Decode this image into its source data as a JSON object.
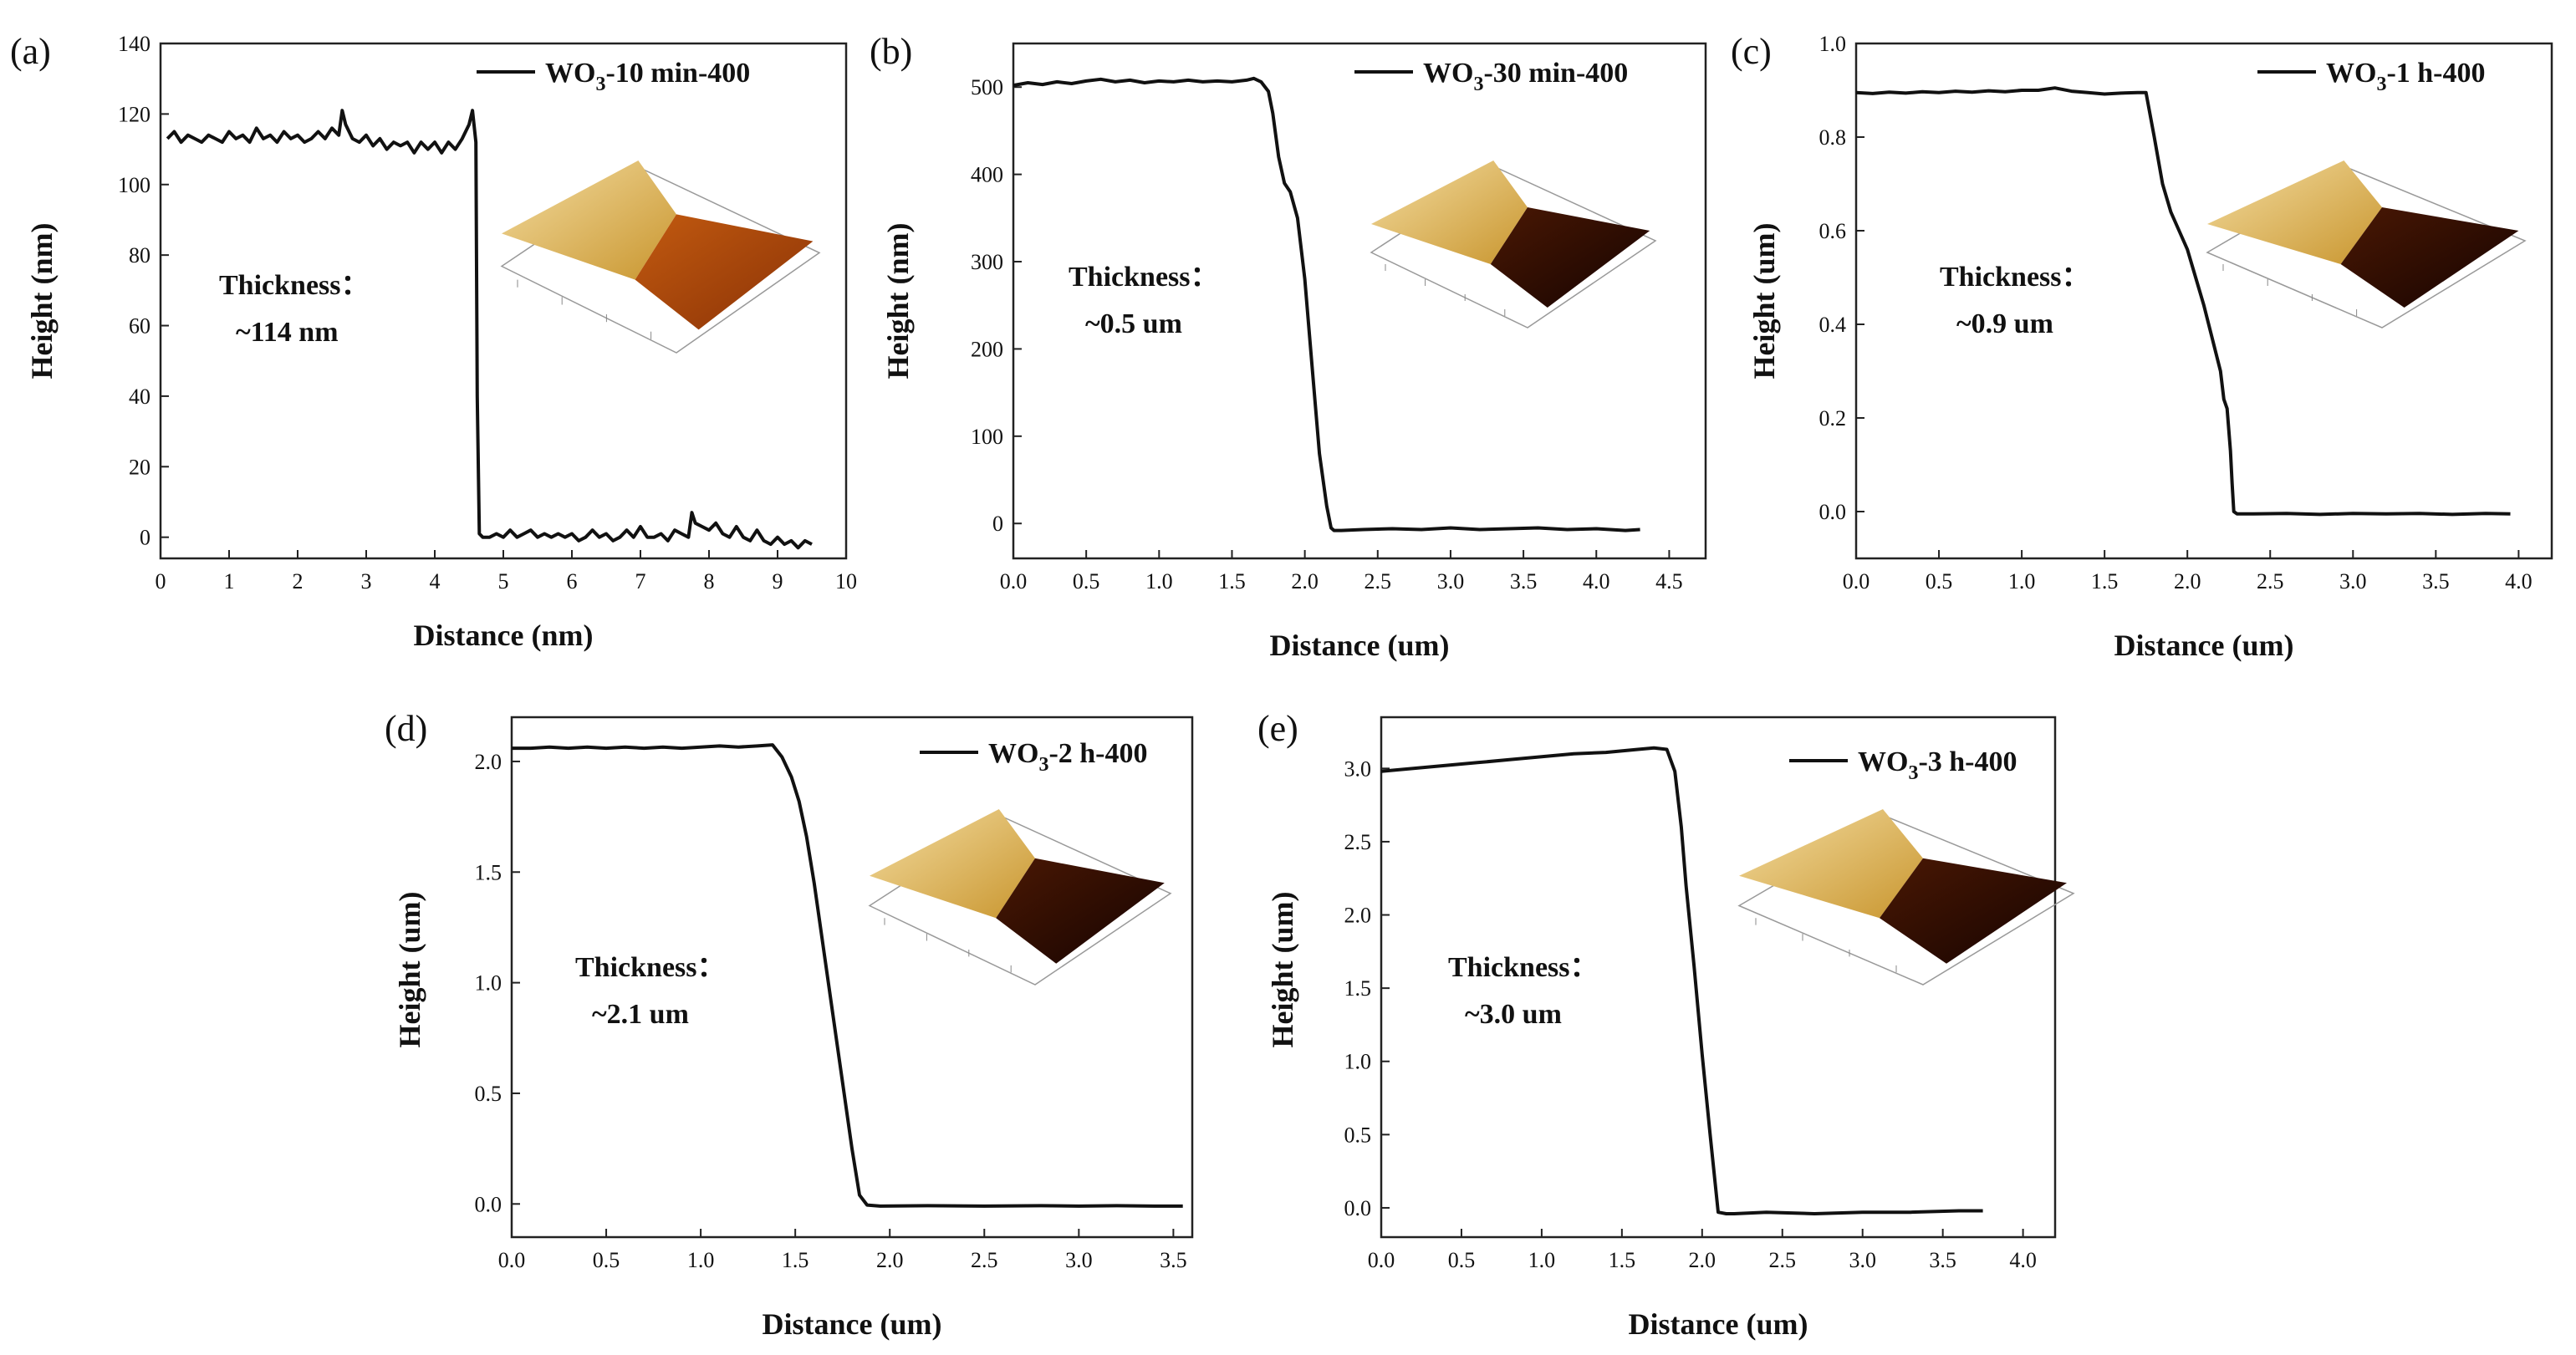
{
  "chart_data": [
    {
      "type": "line",
      "panel_label": "(a)",
      "legend": {
        "prefix": "WO",
        "sub": "3",
        "suffix": "-10 min-400"
      },
      "annotation": [
        "Thickness：",
        "~114 nm"
      ],
      "xlabel": "Distance (nm)",
      "ylabel": "Height (nm)",
      "xlim": [
        0,
        10
      ],
      "ylim": [
        -6,
        140
      ],
      "xticks": [
        0,
        1,
        2,
        3,
        4,
        5,
        6,
        7,
        8,
        9,
        10
      ],
      "yticks": [
        0,
        20,
        40,
        60,
        80,
        100,
        120,
        140
      ],
      "x": [
        0.1,
        0.2,
        0.3,
        0.4,
        0.5,
        0.6,
        0.7,
        0.8,
        0.9,
        1.0,
        1.1,
        1.2,
        1.3,
        1.4,
        1.5,
        1.6,
        1.7,
        1.8,
        1.9,
        2.0,
        2.1,
        2.2,
        2.3,
        2.4,
        2.5,
        2.6,
        2.65,
        2.7,
        2.8,
        2.9,
        3.0,
        3.1,
        3.2,
        3.3,
        3.4,
        3.5,
        3.6,
        3.7,
        3.8,
        3.9,
        4.0,
        4.1,
        4.2,
        4.3,
        4.4,
        4.5,
        4.55,
        4.6,
        4.62,
        4.65,
        4.7,
        4.8,
        4.9,
        5.0,
        5.1,
        5.2,
        5.3,
        5.4,
        5.5,
        5.6,
        5.7,
        5.8,
        5.9,
        6.0,
        6.1,
        6.2,
        6.3,
        6.4,
        6.5,
        6.6,
        6.7,
        6.8,
        6.9,
        7.0,
        7.1,
        7.2,
        7.3,
        7.4,
        7.5,
        7.6,
        7.7,
        7.75,
        7.8,
        7.9,
        8.0,
        8.1,
        8.2,
        8.3,
        8.4,
        8.5,
        8.6,
        8.7,
        8.8,
        8.9,
        9.0,
        9.1,
        9.2,
        9.3,
        9.4,
        9.5
      ],
      "y": [
        113,
        115,
        112,
        114,
        113,
        112,
        114,
        113,
        112,
        115,
        113,
        114,
        112,
        116,
        113,
        114,
        112,
        115,
        113,
        114,
        112,
        113,
        115,
        113,
        116,
        114,
        121,
        117,
        113,
        112,
        114,
        111,
        113,
        110,
        112,
        111,
        112,
        109,
        112,
        110,
        112,
        109,
        112,
        110,
        113,
        117,
        121,
        112,
        40,
        1,
        0,
        0,
        1,
        0,
        2,
        0,
        1,
        2,
        0,
        1,
        0,
        1,
        0,
        1,
        -1,
        0,
        2,
        0,
        1,
        -1,
        0,
        2,
        0,
        3,
        0,
        0,
        1,
        -1,
        2,
        1,
        0,
        7,
        4,
        3,
        2,
        4,
        1,
        0,
        3,
        0,
        -1,
        2,
        -1,
        -2,
        0,
        -2,
        -1,
        -3,
        -1,
        -2
      ]
    },
    {
      "type": "line",
      "panel_label": "(b)",
      "legend": {
        "prefix": "WO",
        "sub": "3",
        "suffix": "-30 min-400"
      },
      "annotation": [
        "Thickness：",
        "~0.5 um"
      ],
      "xlabel": "Distance (um)",
      "ylabel": "Height (nm)",
      "xlim": [
        0,
        4.75
      ],
      "ylim": [
        -40,
        550
      ],
      "xticks": [
        0.0,
        0.5,
        1.0,
        1.5,
        2.0,
        2.5,
        3.0,
        3.5,
        4.0,
        4.5
      ],
      "yticks": [
        0,
        100,
        200,
        300,
        400,
        500
      ],
      "x": [
        0.0,
        0.1,
        0.2,
        0.3,
        0.4,
        0.5,
        0.6,
        0.7,
        0.8,
        0.9,
        1.0,
        1.1,
        1.2,
        1.3,
        1.4,
        1.5,
        1.6,
        1.65,
        1.7,
        1.75,
        1.78,
        1.82,
        1.86,
        1.9,
        1.95,
        2.0,
        2.05,
        2.1,
        2.15,
        2.18,
        2.2,
        2.25,
        2.4,
        2.6,
        2.8,
        3.0,
        3.2,
        3.4,
        3.6,
        3.8,
        4.0,
        4.2,
        4.3
      ],
      "y": [
        502,
        505,
        503,
        506,
        504,
        507,
        509,
        506,
        508,
        505,
        507,
        506,
        508,
        506,
        507,
        506,
        508,
        510,
        506,
        495,
        470,
        420,
        390,
        380,
        350,
        280,
        180,
        80,
        20,
        -5,
        -8,
        -8,
        -7,
        -6,
        -7,
        -5,
        -7,
        -6,
        -5,
        -7,
        -6,
        -8,
        -7
      ]
    },
    {
      "type": "line",
      "panel_label": "(c)",
      "legend": {
        "prefix": "WO",
        "sub": "3",
        "suffix": "-1 h-400"
      },
      "annotation": [
        "Thickness：",
        "~0.9 um"
      ],
      "xlabel": "Distance (um)",
      "ylabel": "Height (um)",
      "xlim": [
        0,
        4.2
      ],
      "ylim": [
        -0.1,
        1.0
      ],
      "xticks": [
        0.0,
        0.5,
        1.0,
        1.5,
        2.0,
        2.5,
        3.0,
        3.5,
        4.0
      ],
      "yticks": [
        0.0,
        0.2,
        0.4,
        0.6,
        0.8,
        1.0
      ],
      "x": [
        0.0,
        0.1,
        0.2,
        0.3,
        0.4,
        0.5,
        0.6,
        0.7,
        0.8,
        0.9,
        1.0,
        1.1,
        1.2,
        1.3,
        1.4,
        1.5,
        1.6,
        1.7,
        1.75,
        1.8,
        1.85,
        1.9,
        1.95,
        2.0,
        2.05,
        2.1,
        2.15,
        2.2,
        2.22,
        2.24,
        2.26,
        2.27,
        2.28,
        2.3,
        2.4,
        2.6,
        2.8,
        3.0,
        3.2,
        3.4,
        3.6,
        3.8,
        3.95
      ],
      "y": [
        0.895,
        0.893,
        0.896,
        0.894,
        0.897,
        0.895,
        0.898,
        0.896,
        0.899,
        0.897,
        0.9,
        0.9,
        0.905,
        0.898,
        0.895,
        0.892,
        0.894,
        0.895,
        0.895,
        0.8,
        0.7,
        0.64,
        0.6,
        0.56,
        0.5,
        0.44,
        0.37,
        0.3,
        0.24,
        0.22,
        0.13,
        0.06,
        0.0,
        -0.005,
        -0.005,
        -0.004,
        -0.006,
        -0.004,
        -0.005,
        -0.004,
        -0.006,
        -0.004,
        -0.005
      ]
    },
    {
      "type": "line",
      "panel_label": "(d)",
      "legend": {
        "prefix": "WO",
        "sub": "3",
        "suffix": "-2 h-400"
      },
      "annotation": [
        "Thickness：",
        "~2.1 um"
      ],
      "xlabel": "Distance (um)",
      "ylabel": "Height (um)",
      "xlim": [
        0,
        3.6
      ],
      "ylim": [
        -0.15,
        2.2
      ],
      "xticks": [
        0.0,
        0.5,
        1.0,
        1.5,
        2.0,
        2.5,
        3.0,
        3.5
      ],
      "yticks": [
        0.0,
        0.5,
        1.0,
        1.5,
        2.0
      ],
      "x": [
        0.0,
        0.1,
        0.2,
        0.3,
        0.4,
        0.5,
        0.6,
        0.7,
        0.8,
        0.9,
        1.0,
        1.1,
        1.2,
        1.3,
        1.38,
        1.43,
        1.48,
        1.52,
        1.56,
        1.6,
        1.65,
        1.7,
        1.75,
        1.8,
        1.84,
        1.88,
        1.95,
        2.2,
        2.5,
        2.8,
        3.0,
        3.2,
        3.4,
        3.55
      ],
      "y": [
        2.06,
        2.06,
        2.065,
        2.06,
        2.065,
        2.06,
        2.065,
        2.06,
        2.065,
        2.06,
        2.065,
        2.07,
        2.065,
        2.07,
        2.075,
        2.02,
        1.93,
        1.82,
        1.66,
        1.45,
        1.15,
        0.85,
        0.55,
        0.25,
        0.04,
        -0.005,
        -0.01,
        -0.008,
        -0.01,
        -0.008,
        -0.01,
        -0.008,
        -0.01,
        -0.01
      ]
    },
    {
      "type": "line",
      "panel_label": "(e)",
      "legend": {
        "prefix": "WO",
        "sub": "3",
        "suffix": "-3 h-400"
      },
      "annotation": [
        "Thickness：",
        "~3.0 um"
      ],
      "xlabel": "Distance (um)",
      "ylabel": "Height (um)",
      "xlim": [
        0,
        4.2
      ],
      "ylim": [
        -0.2,
        3.35
      ],
      "xticks": [
        0.0,
        0.5,
        1.0,
        1.5,
        2.0,
        2.5,
        3.0,
        3.5,
        4.0
      ],
      "yticks": [
        0.0,
        0.5,
        1.0,
        1.5,
        2.0,
        2.5,
        3.0
      ],
      "x": [
        0.0,
        0.2,
        0.4,
        0.6,
        0.8,
        1.0,
        1.2,
        1.4,
        1.6,
        1.7,
        1.78,
        1.83,
        1.87,
        1.9,
        1.95,
        2.0,
        2.05,
        2.1,
        2.15,
        2.2,
        2.4,
        2.7,
        3.0,
        3.3,
        3.6,
        3.75
      ],
      "y": [
        2.98,
        3.0,
        3.02,
        3.04,
        3.06,
        3.08,
        3.1,
        3.11,
        3.13,
        3.14,
        3.13,
        2.98,
        2.6,
        2.2,
        1.65,
        1.05,
        0.5,
        -0.03,
        -0.04,
        -0.04,
        -0.03,
        -0.04,
        -0.03,
        -0.03,
        -0.02,
        -0.02
      ]
    }
  ]
}
